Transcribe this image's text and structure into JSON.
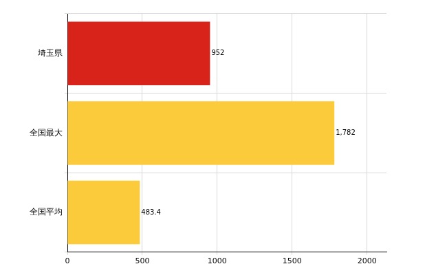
{
  "chart_data": {
    "type": "bar",
    "orientation": "horizontal",
    "categories": [
      "埼玉県",
      "全国最大",
      "全国平均"
    ],
    "values": [
      952,
      1782,
      483.4
    ],
    "value_labels": [
      "952",
      "1,782",
      "483.4"
    ],
    "colors": [
      "#d7231a",
      "#fccb3b",
      "#fccb3b"
    ],
    "xlim": [
      0,
      2130
    ],
    "xticks": [
      0,
      500,
      1000,
      1500,
      2000
    ],
    "grid": true,
    "data_labels": true
  }
}
